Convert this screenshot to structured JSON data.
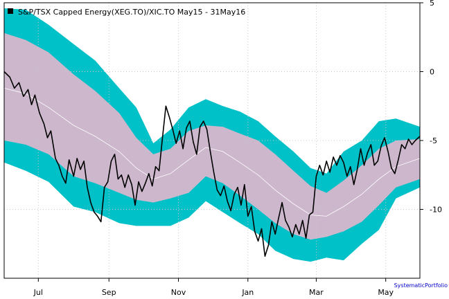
{
  "chart_data": {
    "type": "line",
    "title": "S&P/TSX Capped Energy(XEG.TO)/XIC.TO May15 - 31May16",
    "credit": "SystematicPortfolio",
    "x_tick_labels": [
      "Jul",
      "Sep",
      "Nov",
      "Jan",
      "Mar",
      "May"
    ],
    "y_tick_labels": [
      "5",
      "0",
      "-5",
      "-10"
    ],
    "y_ticks": [
      5,
      0,
      -5,
      -10
    ],
    "ylim": [
      -15,
      5
    ],
    "grid": true,
    "legend_position": "top-left",
    "colors": {
      "outer_band": "#00c0c8",
      "inner_band": "#cdb7cc",
      "mean_line": "#ffffff",
      "price_line": "#000000",
      "grid": "#c8c8c8",
      "credit": "#0000cc"
    },
    "x_start": "2015-06-01",
    "x_end": "2016-05-31",
    "x_ticks": [
      "2015-07-01",
      "2015-09-01",
      "2015-11-01",
      "2016-01-01",
      "2016-03-01",
      "2016-05-01"
    ],
    "mean": [
      [
        "2015-06-01",
        -1.2
      ],
      [
        "2015-06-20",
        -1.6
      ],
      [
        "2015-07-10",
        -2.6
      ],
      [
        "2015-08-01",
        -3.9
      ],
      [
        "2015-08-20",
        -4.7
      ],
      [
        "2015-09-10",
        -5.8
      ],
      [
        "2015-09-25",
        -7.0
      ],
      [
        "2015-10-10",
        -7.8
      ],
      [
        "2015-10-25",
        -7.4
      ],
      [
        "2015-11-10",
        -6.4
      ],
      [
        "2015-11-25",
        -5.5
      ],
      [
        "2015-12-10",
        -5.8
      ],
      [
        "2015-12-25",
        -6.6
      ],
      [
        "2016-01-10",
        -7.5
      ],
      [
        "2016-01-25",
        -8.6
      ],
      [
        "2016-02-10",
        -9.6
      ],
      [
        "2016-02-25",
        -10.4
      ],
      [
        "2016-03-10",
        -10.5
      ],
      [
        "2016-03-25",
        -9.8
      ],
      [
        "2016-04-10",
        -8.9
      ],
      [
        "2016-04-25",
        -7.8
      ],
      [
        "2016-05-10",
        -6.9
      ],
      [
        "2016-05-31",
        -6.3
      ]
    ],
    "inner_band": {
      "upper": [
        [
          "2015-06-01",
          2.8
        ],
        [
          "2015-06-20",
          2.3
        ],
        [
          "2015-07-10",
          1.4
        ],
        [
          "2015-08-01",
          -0.2
        ],
        [
          "2015-08-20",
          -1.4
        ],
        [
          "2015-09-10",
          -3.0
        ],
        [
          "2015-09-25",
          -4.8
        ],
        [
          "2015-10-10",
          -6.0
        ],
        [
          "2015-10-25",
          -5.6
        ],
        [
          "2015-11-10",
          -4.3
        ],
        [
          "2015-11-25",
          -3.9
        ],
        [
          "2015-12-10",
          -4.0
        ],
        [
          "2015-12-25",
          -4.5
        ],
        [
          "2016-01-10",
          -5.0
        ],
        [
          "2016-01-25",
          -6.0
        ],
        [
          "2016-02-10",
          -7.2
        ],
        [
          "2016-02-25",
          -8.3
        ],
        [
          "2016-03-10",
          -8.8
        ],
        [
          "2016-03-25",
          -7.9
        ],
        [
          "2016-04-10",
          -6.8
        ],
        [
          "2016-04-25",
          -5.6
        ],
        [
          "2016-05-10",
          -5.0
        ],
        [
          "2016-05-31",
          -4.9
        ]
      ],
      "lower": [
        [
          "2015-06-01",
          -5.0
        ],
        [
          "2015-06-20",
          -5.3
        ],
        [
          "2015-07-10",
          -6.0
        ],
        [
          "2015-08-01",
          -7.6
        ],
        [
          "2015-08-20",
          -8.1
        ],
        [
          "2015-09-10",
          -8.8
        ],
        [
          "2015-09-25",
          -9.3
        ],
        [
          "2015-10-10",
          -9.5
        ],
        [
          "2015-10-25",
          -9.2
        ],
        [
          "2015-11-10",
          -8.8
        ],
        [
          "2015-11-25",
          -7.6
        ],
        [
          "2015-12-10",
          -8.1
        ],
        [
          "2015-12-25",
          -9.0
        ],
        [
          "2016-01-10",
          -10.0
        ],
        [
          "2016-01-25",
          -11.0
        ],
        [
          "2016-02-10",
          -11.8
        ],
        [
          "2016-02-25",
          -12.2
        ],
        [
          "2016-03-10",
          -12.0
        ],
        [
          "2016-03-25",
          -11.6
        ],
        [
          "2016-04-10",
          -10.9
        ],
        [
          "2016-04-25",
          -9.7
        ],
        [
          "2016-05-10",
          -8.4
        ],
        [
          "2016-05-31",
          -7.8
        ]
      ]
    },
    "outer_band": {
      "upper": [
        [
          "2015-06-01",
          4.6
        ],
        [
          "2015-06-20",
          4.5
        ],
        [
          "2015-07-10",
          3.4
        ],
        [
          "2015-08-01",
          2.0
        ],
        [
          "2015-08-20",
          0.8
        ],
        [
          "2015-09-10",
          -1.2
        ],
        [
          "2015-09-25",
          -2.6
        ],
        [
          "2015-10-10",
          -5.2
        ],
        [
          "2015-10-25",
          -4.2
        ],
        [
          "2015-11-10",
          -2.6
        ],
        [
          "2015-11-25",
          -2.0
        ],
        [
          "2015-12-10",
          -2.5
        ],
        [
          "2015-12-25",
          -2.9
        ],
        [
          "2016-01-10",
          -3.6
        ],
        [
          "2016-01-25",
          -4.7
        ],
        [
          "2016-02-10",
          -5.8
        ],
        [
          "2016-02-25",
          -7.0
        ],
        [
          "2016-03-10",
          -7.4
        ],
        [
          "2016-03-25",
          -5.8
        ],
        [
          "2016-04-10",
          -5.0
        ],
        [
          "2016-04-25",
          -3.6
        ],
        [
          "2016-05-10",
          -3.4
        ],
        [
          "2016-05-31",
          -4.0
        ]
      ],
      "lower": [
        [
          "2015-06-01",
          -6.6
        ],
        [
          "2015-06-20",
          -7.2
        ],
        [
          "2015-07-10",
          -8.0
        ],
        [
          "2015-08-01",
          -9.8
        ],
        [
          "2015-08-20",
          -10.2
        ],
        [
          "2015-09-10",
          -11.0
        ],
        [
          "2015-09-25",
          -11.2
        ],
        [
          "2015-10-10",
          -11.2
        ],
        [
          "2015-10-25",
          -11.2
        ],
        [
          "2015-11-10",
          -10.6
        ],
        [
          "2015-11-25",
          -9.4
        ],
        [
          "2015-12-10",
          -10.2
        ],
        [
          "2015-12-25",
          -11.0
        ],
        [
          "2016-01-10",
          -11.8
        ],
        [
          "2016-01-25",
          -13.0
        ],
        [
          "2016-02-10",
          -13.6
        ],
        [
          "2016-02-25",
          -13.8
        ],
        [
          "2016-03-10",
          -13.5
        ],
        [
          "2016-03-25",
          -13.7
        ],
        [
          "2016-04-10",
          -12.5
        ],
        [
          "2016-04-25",
          -11.5
        ],
        [
          "2016-05-10",
          -9.2
        ],
        [
          "2016-05-31",
          -8.4
        ]
      ]
    },
    "series": [
      {
        "name": "S&P/TSX Capped Energy(XEG.TO)/XIC.TO May15 - 31May16",
        "values": [
          [
            "2015-06-01",
            0.0
          ],
          [
            "2015-06-06",
            -0.4
          ],
          [
            "2015-06-10",
            -1.2
          ],
          [
            "2015-06-14",
            -0.8
          ],
          [
            "2015-06-18",
            -1.8
          ],
          [
            "2015-06-22",
            -1.3
          ],
          [
            "2015-06-25",
            -2.4
          ],
          [
            "2015-06-28",
            -1.7
          ],
          [
            "2015-07-02",
            -3.0
          ],
          [
            "2015-07-06",
            -3.8
          ],
          [
            "2015-07-09",
            -4.8
          ],
          [
            "2015-07-12",
            -4.3
          ],
          [
            "2015-07-16",
            -6.3
          ],
          [
            "2015-07-19",
            -6.8
          ],
          [
            "2015-07-22",
            -7.6
          ],
          [
            "2015-07-25",
            -8.1
          ],
          [
            "2015-07-28",
            -6.4
          ],
          [
            "2015-08-01",
            -7.6
          ],
          [
            "2015-08-04",
            -6.3
          ],
          [
            "2015-08-07",
            -7.1
          ],
          [
            "2015-08-10",
            -6.5
          ],
          [
            "2015-08-13",
            -8.4
          ],
          [
            "2015-08-16",
            -9.5
          ],
          [
            "2015-08-19",
            -10.2
          ],
          [
            "2015-08-22",
            -10.5
          ],
          [
            "2015-08-25",
            -10.9
          ],
          [
            "2015-08-28",
            -8.4
          ],
          [
            "2015-08-31",
            -8.0
          ],
          [
            "2015-09-03",
            -6.5
          ],
          [
            "2015-09-06",
            -6.0
          ],
          [
            "2015-09-09",
            -7.8
          ],
          [
            "2015-09-12",
            -7.5
          ],
          [
            "2015-09-15",
            -8.4
          ],
          [
            "2015-09-18",
            -7.5
          ],
          [
            "2015-09-21",
            -8.2
          ],
          [
            "2015-09-24",
            -9.7
          ],
          [
            "2015-09-27",
            -8.0
          ],
          [
            "2015-09-30",
            -8.7
          ],
          [
            "2015-10-03",
            -8.1
          ],
          [
            "2015-10-06",
            -7.4
          ],
          [
            "2015-10-09",
            -8.3
          ],
          [
            "2015-10-12",
            -6.9
          ],
          [
            "2015-10-15",
            -7.2
          ],
          [
            "2015-10-18",
            -4.8
          ],
          [
            "2015-10-21",
            -2.5
          ],
          [
            "2015-10-24",
            -3.3
          ],
          [
            "2015-10-27",
            -4.2
          ],
          [
            "2015-10-30",
            -5.2
          ],
          [
            "2015-11-02",
            -4.3
          ],
          [
            "2015-11-05",
            -5.6
          ],
          [
            "2015-11-08",
            -4.1
          ],
          [
            "2015-11-11",
            -3.6
          ],
          [
            "2015-11-14",
            -5.1
          ],
          [
            "2015-11-17",
            -6.0
          ],
          [
            "2015-11-20",
            -4.0
          ],
          [
            "2015-11-23",
            -3.6
          ],
          [
            "2015-11-26",
            -4.2
          ],
          [
            "2015-11-29",
            -5.8
          ],
          [
            "2015-12-02",
            -7.3
          ],
          [
            "2015-12-05",
            -8.6
          ],
          [
            "2015-12-08",
            -9.0
          ],
          [
            "2015-12-11",
            -8.3
          ],
          [
            "2015-12-14",
            -9.4
          ],
          [
            "2015-12-17",
            -10.1
          ],
          [
            "2015-12-20",
            -8.9
          ],
          [
            "2015-12-23",
            -8.4
          ],
          [
            "2015-12-26",
            -9.7
          ],
          [
            "2015-12-29",
            -8.2
          ],
          [
            "2016-01-01",
            -10.5
          ],
          [
            "2016-01-04",
            -9.8
          ],
          [
            "2016-01-07",
            -11.6
          ],
          [
            "2016-01-10",
            -12.3
          ],
          [
            "2016-01-13",
            -11.4
          ],
          [
            "2016-01-16",
            -13.4
          ],
          [
            "2016-01-19",
            -12.6
          ],
          [
            "2016-01-22",
            -10.9
          ],
          [
            "2016-01-25",
            -11.8
          ],
          [
            "2016-01-28",
            -10.6
          ],
          [
            "2016-01-31",
            -9.5
          ],
          [
            "2016-02-03",
            -10.8
          ],
          [
            "2016-02-06",
            -11.3
          ],
          [
            "2016-02-09",
            -12.0
          ],
          [
            "2016-02-12",
            -11.1
          ],
          [
            "2016-02-15",
            -11.8
          ],
          [
            "2016-02-18",
            -10.8
          ],
          [
            "2016-02-21",
            -12.1
          ],
          [
            "2016-02-24",
            -10.4
          ],
          [
            "2016-02-27",
            -10.2
          ],
          [
            "2016-03-01",
            -7.6
          ],
          [
            "2016-03-04",
            -6.8
          ],
          [
            "2016-03-07",
            -7.5
          ],
          [
            "2016-03-10",
            -6.5
          ],
          [
            "2016-03-13",
            -7.3
          ],
          [
            "2016-03-16",
            -6.2
          ],
          [
            "2016-03-19",
            -6.8
          ],
          [
            "2016-03-22",
            -6.1
          ],
          [
            "2016-03-25",
            -6.6
          ],
          [
            "2016-03-28",
            -7.6
          ],
          [
            "2016-03-31",
            -6.9
          ],
          [
            "2016-04-03",
            -8.2
          ],
          [
            "2016-04-06",
            -7.1
          ],
          [
            "2016-04-09",
            -5.6
          ],
          [
            "2016-04-12",
            -6.8
          ],
          [
            "2016-04-15",
            -5.9
          ],
          [
            "2016-04-18",
            -5.3
          ],
          [
            "2016-04-21",
            -6.8
          ],
          [
            "2016-04-24",
            -6.5
          ],
          [
            "2016-04-27",
            -5.4
          ],
          [
            "2016-04-30",
            -4.8
          ],
          [
            "2016-05-03",
            -5.8
          ],
          [
            "2016-05-06",
            -7.0
          ],
          [
            "2016-05-09",
            -7.4
          ],
          [
            "2016-05-12",
            -6.4
          ],
          [
            "2016-05-15",
            -5.3
          ],
          [
            "2016-05-18",
            -5.6
          ],
          [
            "2016-05-21",
            -4.9
          ],
          [
            "2016-05-24",
            -5.3
          ],
          [
            "2016-05-27",
            -5.0
          ],
          [
            "2016-05-31",
            -4.7
          ]
        ]
      }
    ]
  }
}
